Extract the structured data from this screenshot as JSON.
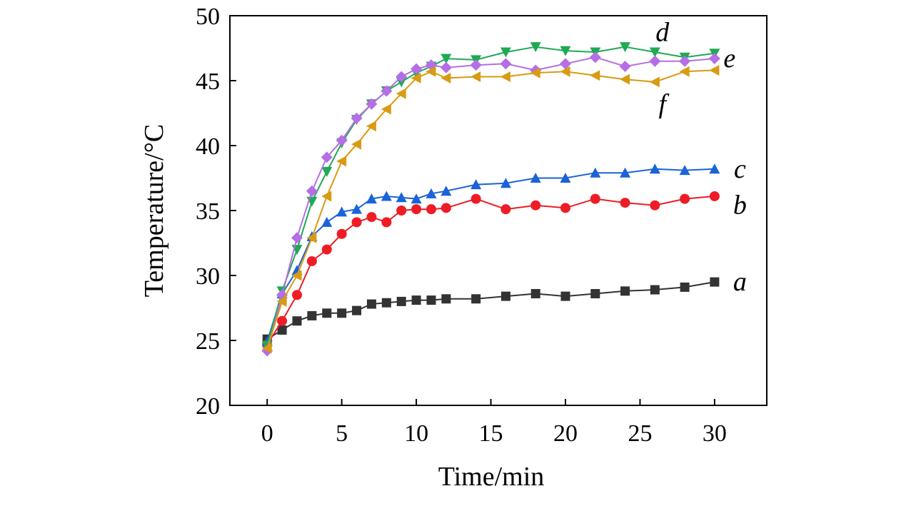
{
  "chart_data": {
    "type": "line",
    "title": "",
    "xlabel": "Time/min",
    "ylabel": "Temperature/°C",
    "xlim": [
      -2.5,
      33.5
    ],
    "ylim": [
      20,
      50
    ],
    "xticks": [
      0,
      5,
      10,
      15,
      20,
      25,
      30
    ],
    "yticks": [
      20,
      25,
      30,
      35,
      40,
      45,
      50
    ],
    "grid": false,
    "series": [
      {
        "name": "a",
        "color": "#333333",
        "marker": "square",
        "x": [
          0,
          1,
          2,
          3,
          4,
          5,
          6,
          7,
          8,
          9,
          10,
          11,
          12,
          14,
          16,
          18,
          20,
          22,
          24,
          26,
          28,
          30
        ],
        "y": [
          25.1,
          25.8,
          26.5,
          26.9,
          27.1,
          27.1,
          27.3,
          27.8,
          27.9,
          28.0,
          28.1,
          28.1,
          28.2,
          28.2,
          28.4,
          28.6,
          28.4,
          28.6,
          28.8,
          28.9,
          29.1,
          29.5
        ]
      },
      {
        "name": "b",
        "color": "#ee1c25",
        "marker": "circle",
        "x": [
          0,
          1,
          2,
          3,
          4,
          5,
          6,
          7,
          8,
          9,
          10,
          11,
          12,
          14,
          16,
          18,
          20,
          22,
          24,
          26,
          28,
          30
        ],
        "y": [
          24.7,
          26.5,
          28.5,
          31.1,
          32.0,
          33.2,
          34.1,
          34.5,
          34.1,
          35.0,
          35.1,
          35.1,
          35.2,
          35.9,
          35.1,
          35.4,
          35.2,
          35.9,
          35.6,
          35.4,
          35.9,
          36.1
        ]
      },
      {
        "name": "c",
        "color": "#1a63d8",
        "marker": "triangle-up",
        "x": [
          0,
          1,
          2,
          3,
          4,
          5,
          6,
          7,
          8,
          9,
          10,
          11,
          12,
          14,
          16,
          18,
          20,
          22,
          24,
          26,
          28,
          30
        ],
        "y": [
          24.9,
          28.6,
          30.4,
          33.0,
          34.1,
          34.9,
          35.1,
          35.9,
          36.1,
          36.0,
          35.9,
          36.3,
          36.5,
          37.0,
          37.1,
          37.5,
          37.5,
          37.9,
          37.9,
          38.2,
          38.1,
          38.2
        ]
      },
      {
        "name": "d",
        "color": "#1fa955",
        "marker": "triangle-down",
        "x": [
          0,
          1,
          2,
          3,
          4,
          5,
          6,
          7,
          8,
          9,
          10,
          11,
          12,
          14,
          16,
          18,
          20,
          22,
          24,
          26,
          28,
          30
        ],
        "y": [
          24.6,
          28.8,
          32.0,
          35.7,
          38.0,
          40.2,
          42.0,
          43.2,
          44.2,
          44.9,
          45.6,
          46.1,
          46.7,
          46.6,
          47.2,
          47.6,
          47.3,
          47.2,
          47.6,
          47.2,
          46.8,
          47.1
        ]
      },
      {
        "name": "e",
        "color": "#b56ee6",
        "marker": "diamond",
        "x": [
          0,
          1,
          2,
          3,
          4,
          5,
          6,
          7,
          8,
          9,
          10,
          11,
          12,
          14,
          16,
          18,
          20,
          22,
          24,
          26,
          28,
          30
        ],
        "y": [
          24.2,
          28.5,
          32.9,
          36.5,
          39.1,
          40.4,
          42.1,
          43.2,
          44.2,
          45.3,
          45.9,
          46.2,
          46.0,
          46.2,
          46.3,
          45.8,
          46.3,
          46.8,
          46.1,
          46.5,
          46.5,
          46.7
        ]
      },
      {
        "name": "f",
        "color": "#d89b12",
        "marker": "triangle-left",
        "x": [
          0,
          1,
          2,
          3,
          4,
          5,
          6,
          7,
          8,
          9,
          10,
          11,
          12,
          14,
          16,
          18,
          20,
          22,
          24,
          26,
          28,
          30
        ],
        "y": [
          24.4,
          28.0,
          30.0,
          32.9,
          36.1,
          38.8,
          40.1,
          41.5,
          42.8,
          44.0,
          45.2,
          45.7,
          45.2,
          45.3,
          45.3,
          45.6,
          45.7,
          45.4,
          45.1,
          44.9,
          45.7,
          45.8
        ]
      }
    ],
    "annotations": [
      {
        "text": "d",
        "x": 26.5,
        "y": 48.7
      },
      {
        "text": "e",
        "x": 31.0,
        "y": 46.7
      },
      {
        "text": "f",
        "x": 26.5,
        "y": 43.2
      },
      {
        "text": "c",
        "x": 31.7,
        "y": 38.2
      },
      {
        "text": "b",
        "x": 31.7,
        "y": 35.4
      },
      {
        "text": "a",
        "x": 31.7,
        "y": 29.5
      }
    ]
  }
}
